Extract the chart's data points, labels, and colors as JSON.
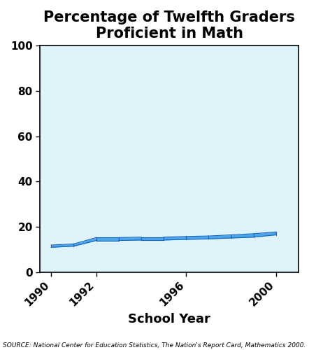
{
  "title": "Percentage of Twelfth Graders\nProficient in Math",
  "xlabel": "School Year",
  "ylabel": "",
  "source": "SOURCE: National Center for Education Statistics, The Nation's Report Card, Mathematics 2000.",
  "years": [
    1990,
    1991,
    1992,
    1993,
    1994,
    1995,
    1996,
    1997,
    1998,
    1999,
    2000
  ],
  "values_upper": [
    12.0,
    12.5,
    15.3,
    15.3,
    15.5,
    15.5,
    15.8,
    16.0,
    16.5,
    17.0,
    17.8
  ],
  "values_lower": [
    11.0,
    11.5,
    14.0,
    14.0,
    14.2,
    14.2,
    14.5,
    14.7,
    15.1,
    15.5,
    16.5
  ],
  "xticks": [
    1990,
    1992,
    1996,
    2000
  ],
  "yticks": [
    0,
    20,
    40,
    60,
    80,
    100
  ],
  "ylim": [
    0,
    100
  ],
  "xlim": [
    1989.5,
    2001.0
  ],
  "line_color": "#1565C0",
  "fill_color": "#4da6e8",
  "bg_color": "#dff3fa",
  "title_fontsize": 15,
  "xlabel_fontsize": 13,
  "source_fontsize": 6.5,
  "tick_fontsize": 11
}
